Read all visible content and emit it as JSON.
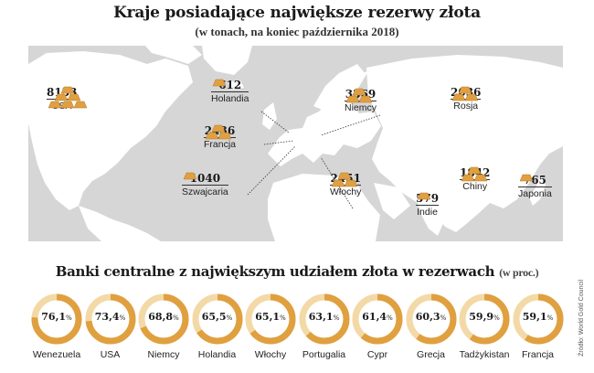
{
  "header": {
    "title": "Kraje posiadające największe rezerwy złota",
    "subtitle": "(w tonach, na koniec października 2018)"
  },
  "countries": [
    {
      "name": "USA",
      "value": "8133"
    },
    {
      "name": "Holandia",
      "value": "612"
    },
    {
      "name": "Francja",
      "value": "2436"
    },
    {
      "name": "Szwajcaria",
      "value": "1040"
    },
    {
      "name": "Niemcy",
      "value": "3369"
    },
    {
      "name": "Włochy",
      "value": "2451"
    },
    {
      "name": "Rosja",
      "value": "2036"
    },
    {
      "name": "Indie",
      "value": "579"
    },
    {
      "name": "Chiny",
      "value": "1842"
    },
    {
      "name": "Japonia",
      "value": "765"
    }
  ],
  "banks": {
    "title": "Banki centralne z największym udziałem złota w rezerwach",
    "unit": "(w proc.)",
    "items": [
      {
        "name": "Wenezuela",
        "value": "76,1",
        "share": 76.1
      },
      {
        "name": "USA",
        "value": "73,4",
        "share": 73.4
      },
      {
        "name": "Niemcy",
        "value": "68,8",
        "share": 68.8
      },
      {
        "name": "Holandia",
        "value": "65,5",
        "share": 65.5
      },
      {
        "name": "Włochy",
        "value": "65,1",
        "share": 65.1
      },
      {
        "name": "Portugalia",
        "value": "63,1",
        "share": 63.1
      },
      {
        "name": "Cypr",
        "value": "61,4",
        "share": 61.4
      },
      {
        "name": "Grecja",
        "value": "60,3",
        "share": 60.3
      },
      {
        "name": "Tadżykistan",
        "value": "59,9",
        "share": 59.9
      },
      {
        "name": "Francja",
        "value": "59,1",
        "share": 59.1
      }
    ],
    "pct_sign": "%"
  },
  "source": "Źródło: World Gold Council",
  "colors": {
    "gold": "#e0a040",
    "gold_light": "#f3d9a6",
    "map_sea": "#d6d6d6",
    "map_land": "#ffffff"
  }
}
